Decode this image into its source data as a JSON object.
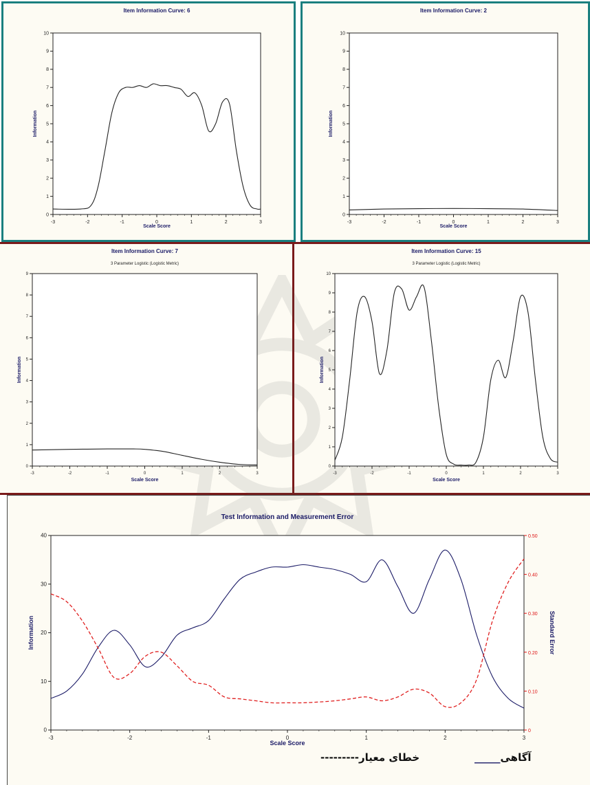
{
  "colors": {
    "info_line": "#1a1a66",
    "se_line": "#e02020",
    "teal_border": "#1a7f7f",
    "maroon_border": "#7a1a1a"
  },
  "chart_data": [
    {
      "type": "line",
      "title": "Item Information Curve: 6",
      "subtitle": "",
      "xlabel": "Scale Score",
      "ylabel": "Information",
      "xlim": [
        -3,
        3
      ],
      "ylim": [
        0,
        10
      ],
      "xticks": [
        "-3",
        "-2",
        "-1",
        "0",
        "1",
        "2",
        "3"
      ],
      "yticks": [
        "0",
        "1",
        "2",
        "3",
        "4",
        "5",
        "6",
        "7",
        "8",
        "9",
        "10"
      ],
      "series": [
        {
          "x": [
            -3,
            -2.2,
            -1.9,
            -1.7,
            -1.5,
            -1.3,
            -1.1,
            -0.9,
            -0.7,
            -0.5,
            -0.3,
            -0.1,
            0.1,
            0.3,
            0.5,
            0.7,
            0.9,
            1.1,
            1.3,
            1.5,
            1.7,
            1.9,
            2.1,
            2.3,
            2.5,
            2.7,
            2.9,
            3
          ],
          "y": [
            0.3,
            0.3,
            0.5,
            1.5,
            3.5,
            5.6,
            6.7,
            7.0,
            7.0,
            7.1,
            7.0,
            7.2,
            7.1,
            7.1,
            7.0,
            6.9,
            6.5,
            6.7,
            6.0,
            4.6,
            5.0,
            6.2,
            6.1,
            3.5,
            1.5,
            0.5,
            0.3,
            0.3
          ]
        }
      ]
    },
    {
      "type": "line",
      "title": "Item Information Curve: 2",
      "subtitle": "",
      "xlabel": "Scale Score",
      "ylabel": "Information",
      "xlim": [
        -3,
        3
      ],
      "ylim": [
        0,
        10
      ],
      "xticks": [
        "-3",
        "-2",
        "-1",
        "0",
        "1",
        "2",
        "3"
      ],
      "yticks": [
        "0",
        "1",
        "2",
        "3",
        "4",
        "5",
        "6",
        "7",
        "8",
        "9",
        "10"
      ],
      "series": [
        {
          "x": [
            -3,
            -2,
            -1,
            0,
            1,
            2,
            3
          ],
          "y": [
            0.25,
            0.3,
            0.32,
            0.33,
            0.32,
            0.3,
            0.22
          ]
        }
      ]
    },
    {
      "type": "line",
      "title": "Item Information Curve: 7",
      "subtitle": "3 Parameter Logistic (Logistic Metric)",
      "xlabel": "Scale Score",
      "ylabel": "Information",
      "xlim": [
        -3,
        3
      ],
      "ylim": [
        0,
        9
      ],
      "xticks": [
        "-3",
        "-2",
        "-1",
        "0",
        "1",
        "2",
        "3"
      ],
      "yticks": [
        "0",
        "1",
        "2",
        "3",
        "4",
        "5",
        "6",
        "7",
        "8",
        "9"
      ],
      "series": [
        {
          "x": [
            -3,
            -2,
            -1,
            -0.3,
            0,
            0.5,
            1,
            1.5,
            2,
            2.5,
            3
          ],
          "y": [
            0.75,
            0.78,
            0.8,
            0.8,
            0.78,
            0.68,
            0.5,
            0.32,
            0.18,
            0.08,
            0.05
          ]
        }
      ]
    },
    {
      "type": "line",
      "title": "Item Information Curve: 15",
      "subtitle": "3 Parameter Logistic (Logistic Metric)",
      "xlabel": "Scale Score",
      "ylabel": "Information",
      "xlim": [
        -3,
        3
      ],
      "ylim": [
        0,
        10
      ],
      "xticks": [
        "-3",
        "-2",
        "-1",
        "0",
        "1",
        "2",
        "3"
      ],
      "yticks": [
        "0",
        "1",
        "2",
        "3",
        "4",
        "5",
        "6",
        "7",
        "8",
        "9",
        "10"
      ],
      "series": [
        {
          "x": [
            -3,
            -2.8,
            -2.6,
            -2.4,
            -2.2,
            -2.0,
            -1.8,
            -1.6,
            -1.4,
            -1.2,
            -1.0,
            -0.8,
            -0.6,
            -0.4,
            -0.2,
            0,
            0.2,
            0.4,
            0.6,
            0.8,
            1.0,
            1.2,
            1.4,
            1.6,
            1.8,
            2.0,
            2.2,
            2.4,
            2.6,
            2.8,
            3.0
          ],
          "y": [
            0.3,
            1.5,
            4.5,
            8.0,
            8.8,
            7.5,
            4.8,
            6.0,
            9.0,
            9.2,
            8.1,
            8.8,
            9.3,
            6.5,
            3.0,
            0.6,
            0.1,
            0.05,
            0.05,
            0.2,
            1.5,
            4.5,
            5.5,
            4.6,
            6.5,
            8.8,
            8.0,
            4.5,
            1.5,
            0.4,
            0.2
          ]
        }
      ]
    },
    {
      "type": "line",
      "title": "Test Information and Measurement Error",
      "xlabel": "Scale Score",
      "ylabel": "Information",
      "y2label": "Standard Error",
      "xlim": [
        -3,
        3
      ],
      "ylim": [
        0,
        40
      ],
      "y2lim": [
        0,
        0.5
      ],
      "xticks": [
        "-3",
        "-2",
        "-1",
        "0",
        "1",
        "2",
        "3"
      ],
      "yticks": [
        "0",
        "10",
        "20",
        "30",
        "40"
      ],
      "y2ticks": [
        "0",
        "0.10",
        "0.20",
        "0.30",
        "0.40",
        "0.50"
      ],
      "grid": false,
      "series": [
        {
          "x": [
            -3,
            -2.8,
            -2.6,
            -2.4,
            -2.2,
            -2.0,
            -1.8,
            -1.6,
            -1.4,
            -1.2,
            -1.0,
            -0.8,
            -0.6,
            -0.4,
            -0.2,
            0,
            0.2,
            0.4,
            0.6,
            0.8,
            1.0,
            1.2,
            1.4,
            1.6,
            1.8,
            2.0,
            2.2,
            2.4,
            2.6,
            2.8,
            3.0
          ],
          "y": [
            6.5,
            8,
            11.5,
            17,
            20.5,
            17.5,
            13,
            15,
            19.5,
            21,
            22.5,
            27,
            31,
            32.5,
            33.5,
            33.5,
            34,
            33.5,
            33,
            32,
            30.5,
            35,
            29.5,
            24,
            31,
            37,
            31,
            19.5,
            11,
            6.5,
            4.5
          ]
        },
        {
          "x": [
            -3,
            -2.8,
            -2.6,
            -2.4,
            -2.2,
            -2.0,
            -1.8,
            -1.6,
            -1.4,
            -1.2,
            -1.0,
            -0.8,
            -0.6,
            -0.4,
            -0.2,
            0,
            0.2,
            0.4,
            0.6,
            0.8,
            1.0,
            1.2,
            1.4,
            1.6,
            1.8,
            2.0,
            2.2,
            2.4,
            2.6,
            2.8,
            3.0
          ],
          "y": [
            0.35,
            0.33,
            0.28,
            0.21,
            0.135,
            0.145,
            0.19,
            0.2,
            0.165,
            0.125,
            0.115,
            0.085,
            0.08,
            0.075,
            0.07,
            0.07,
            0.07,
            0.072,
            0.075,
            0.08,
            0.085,
            0.075,
            0.085,
            0.105,
            0.095,
            0.06,
            0.07,
            0.13,
            0.28,
            0.38,
            0.44
          ]
        }
      ]
    }
  ],
  "legend": {
    "info_label": "آگاهی",
    "info_dash": "_____",
    "se_label": "خطای معیار",
    "se_dash": "---------"
  }
}
